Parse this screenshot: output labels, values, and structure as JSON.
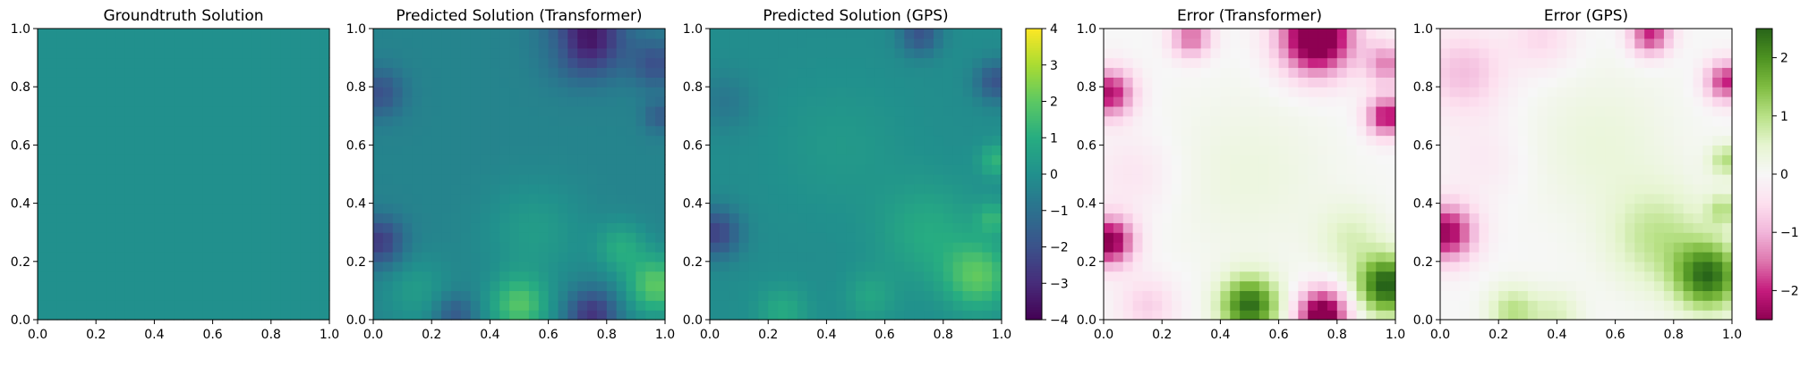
{
  "figure": {
    "panels": [
      {
        "title": "Groundtruth Solution"
      },
      {
        "title": "Predicted Solution (Transformer)"
      },
      {
        "title": "Predicted Solution (GPS)"
      },
      {
        "title": "Error (Transformer)"
      },
      {
        "title": "Error (GPS)"
      }
    ],
    "axis_ticks": [
      "0.0",
      "0.2",
      "0.4",
      "0.6",
      "0.8",
      "1.0"
    ],
    "colorbar_solution": {
      "ticks": [
        "4",
        "3",
        "2",
        "1",
        "0",
        "−1",
        "−2",
        "−3",
        "−4"
      ]
    },
    "colorbar_error": {
      "ticks": [
        "2",
        "1",
        "0",
        "−1",
        "−2"
      ]
    }
  },
  "chart_data": [
    {
      "type": "heatmap",
      "title": "Groundtruth Solution",
      "xlim": [
        0,
        1
      ],
      "ylim": [
        0,
        1
      ],
      "colormap": "viridis",
      "vmin": -4,
      "vmax": 4,
      "grid": false,
      "description_values": {
        "background": 0.0
      },
      "blobs": []
    },
    {
      "type": "heatmap",
      "title": "Predicted Solution (Transformer)",
      "xlim": [
        0,
        1
      ],
      "ylim": [
        0,
        1
      ],
      "colormap": "viridis",
      "vmin": -4,
      "vmax": 4,
      "grid": false,
      "description_values": {
        "background": -0.4
      },
      "blobs": [
        {
          "x": 0.73,
          "y": 0.97,
          "value": -3.3,
          "spread": 0.09
        },
        {
          "x": 0.02,
          "y": 0.78,
          "value": -1.6,
          "spread": 0.06
        },
        {
          "x": 0.02,
          "y": 0.27,
          "value": -2.2,
          "spread": 0.06
        },
        {
          "x": 0.28,
          "y": 0.02,
          "value": -1.4,
          "spread": 0.05
        },
        {
          "x": 0.75,
          "y": 0.02,
          "value": -2.4,
          "spread": 0.06
        },
        {
          "x": 0.97,
          "y": 0.88,
          "value": -1.6,
          "spread": 0.06
        },
        {
          "x": 0.98,
          "y": 0.7,
          "value": -1.2,
          "spread": 0.04
        },
        {
          "x": 0.5,
          "y": 0.05,
          "value": 2.2,
          "spread": 0.07
        },
        {
          "x": 0.97,
          "y": 0.12,
          "value": 2.4,
          "spread": 0.07
        },
        {
          "x": 0.85,
          "y": 0.25,
          "value": 1.3,
          "spread": 0.06
        },
        {
          "x": 0.15,
          "y": 0.1,
          "value": 0.8,
          "spread": 0.08
        },
        {
          "x": 0.65,
          "y": 0.95,
          "value": 0.6,
          "spread": 0.05
        },
        {
          "x": 0.55,
          "y": 0.3,
          "value": 0.8,
          "spread": 0.12
        }
      ]
    },
    {
      "type": "heatmap",
      "title": "Predicted Solution (GPS)",
      "xlim": [
        0,
        1
      ],
      "ylim": [
        0,
        1
      ],
      "colormap": "viridis",
      "vmin": -4,
      "vmax": 4,
      "grid": false,
      "description_values": {
        "background": -0.1
      },
      "blobs": [
        {
          "x": 0.72,
          "y": 0.98,
          "value": -1.8,
          "spread": 0.05
        },
        {
          "x": 0.02,
          "y": 0.3,
          "value": -2.3,
          "spread": 0.06
        },
        {
          "x": 0.98,
          "y": 0.82,
          "value": -1.8,
          "spread": 0.05
        },
        {
          "x": 0.05,
          "y": 0.75,
          "value": -0.7,
          "spread": 0.07
        },
        {
          "x": 0.92,
          "y": 0.15,
          "value": 2.0,
          "spread": 0.08
        },
        {
          "x": 0.75,
          "y": 0.3,
          "value": 1.0,
          "spread": 0.12
        },
        {
          "x": 0.25,
          "y": 0.03,
          "value": 1.0,
          "spread": 0.06
        },
        {
          "x": 0.55,
          "y": 0.08,
          "value": 0.8,
          "spread": 0.06
        },
        {
          "x": 0.98,
          "y": 0.55,
          "value": 1.3,
          "spread": 0.04
        },
        {
          "x": 0.97,
          "y": 0.35,
          "value": 1.2,
          "spread": 0.04
        },
        {
          "x": 0.45,
          "y": 0.6,
          "value": 0.4,
          "spread": 0.15
        }
      ]
    },
    {
      "type": "heatmap",
      "title": "Error (Transformer)",
      "xlim": [
        0,
        1
      ],
      "ylim": [
        0,
        1
      ],
      "colormap": "PiYG",
      "vmin": -2.5,
      "vmax": 2.5,
      "grid": false,
      "description_values": {
        "background": 0.0
      },
      "blobs": [
        {
          "x": 0.73,
          "y": 0.97,
          "value": -3.2,
          "spread": 0.09
        },
        {
          "x": 0.02,
          "y": 0.78,
          "value": -2.2,
          "spread": 0.06
        },
        {
          "x": 0.02,
          "y": 0.27,
          "value": -2.6,
          "spread": 0.06
        },
        {
          "x": 0.3,
          "y": 0.97,
          "value": -1.6,
          "spread": 0.05
        },
        {
          "x": 0.97,
          "y": 0.7,
          "value": -2.2,
          "spread": 0.05
        },
        {
          "x": 0.97,
          "y": 0.88,
          "value": -1.4,
          "spread": 0.05
        },
        {
          "x": 0.75,
          "y": 0.02,
          "value": -3.0,
          "spread": 0.06
        },
        {
          "x": 0.5,
          "y": 0.05,
          "value": 2.4,
          "spread": 0.07
        },
        {
          "x": 0.97,
          "y": 0.12,
          "value": 2.6,
          "spread": 0.07
        },
        {
          "x": 0.85,
          "y": 0.28,
          "value": 0.6,
          "spread": 0.08
        },
        {
          "x": 0.5,
          "y": 0.5,
          "value": 0.3,
          "spread": 0.2
        },
        {
          "x": 0.15,
          "y": 0.05,
          "value": -0.7,
          "spread": 0.07
        },
        {
          "x": 0.1,
          "y": 0.5,
          "value": -0.4,
          "spread": 0.1
        }
      ]
    },
    {
      "type": "heatmap",
      "title": "Error (GPS)",
      "xlim": [
        0,
        1
      ],
      "ylim": [
        0,
        1
      ],
      "colormap": "PiYG",
      "vmin": -2.5,
      "vmax": 2.5,
      "grid": false,
      "description_values": {
        "background": 0.0
      },
      "blobs": [
        {
          "x": 0.02,
          "y": 0.3,
          "value": -2.4,
          "spread": 0.07
        },
        {
          "x": 0.72,
          "y": 0.98,
          "value": -2.0,
          "spread": 0.05
        },
        {
          "x": 0.98,
          "y": 0.82,
          "value": -2.0,
          "spread": 0.05
        },
        {
          "x": 0.08,
          "y": 0.85,
          "value": -0.9,
          "spread": 0.1
        },
        {
          "x": 0.35,
          "y": 0.97,
          "value": -0.6,
          "spread": 0.08
        },
        {
          "x": 0.92,
          "y": 0.15,
          "value": 2.3,
          "spread": 0.08
        },
        {
          "x": 0.75,
          "y": 0.28,
          "value": 0.9,
          "spread": 0.12
        },
        {
          "x": 0.25,
          "y": 0.03,
          "value": 1.0,
          "spread": 0.06
        },
        {
          "x": 0.98,
          "y": 0.55,
          "value": 1.0,
          "spread": 0.04
        },
        {
          "x": 0.97,
          "y": 0.38,
          "value": 0.9,
          "spread": 0.04
        },
        {
          "x": 0.55,
          "y": 0.6,
          "value": 0.35,
          "spread": 0.18
        },
        {
          "x": 0.4,
          "y": 0.02,
          "value": 0.6,
          "spread": 0.06
        },
        {
          "x": 0.15,
          "y": 0.55,
          "value": -0.3,
          "spread": 0.1
        }
      ]
    }
  ]
}
